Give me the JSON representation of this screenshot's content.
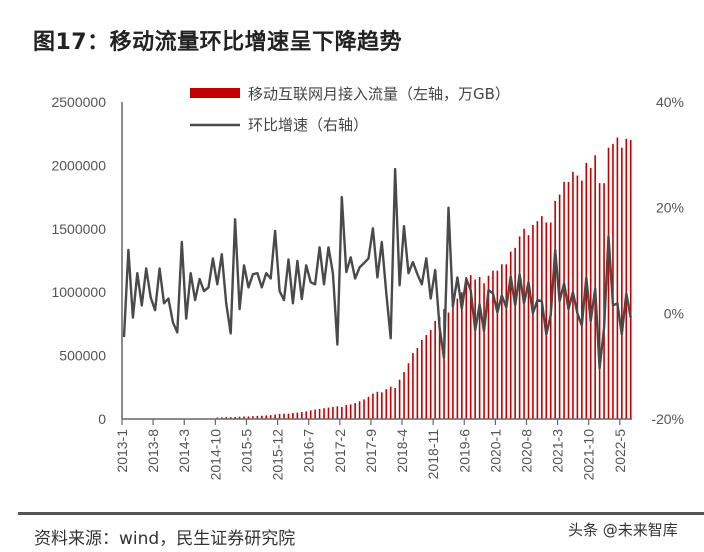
{
  "title": "图17：移动流量环比增速呈下降趋势",
  "source": "资料来源：wind，民生证券研究院",
  "watermark": "头条 @未来智库",
  "chart_data": {
    "type": "bar+line",
    "title": "",
    "legend": {
      "position": "top",
      "items": [
        "移动互联网月接入流量（左轴，万GB）",
        "环比增速（右轴）"
      ]
    },
    "colors": {
      "bars": "#c00000",
      "line": "#4a4a4a"
    },
    "y_left": {
      "range": [
        0,
        2500000
      ],
      "ticks": [
        "0",
        "500000",
        "1000000",
        "1500000",
        "2000000",
        "2500000"
      ]
    },
    "y_right": {
      "range": [
        -20,
        40
      ],
      "unit": "%",
      "ticks": [
        "-20%",
        "0%",
        "20%",
        "40%"
      ]
    },
    "x_tick_labels": [
      "2013-1",
      "2013-8",
      "2014-3",
      "2014-10",
      "2015-5",
      "2015-12",
      "2016-7",
      "2017-2",
      "2017-9",
      "2018-4",
      "2018-11",
      "2019-6",
      "2020-1",
      "2020-8",
      "2021-3",
      "2021-10",
      "2022-5"
    ],
    "categories": [
      "2013-1",
      "2013-2",
      "2013-3",
      "2013-4",
      "2013-5",
      "2013-6",
      "2013-7",
      "2013-8",
      "2013-9",
      "2013-10",
      "2013-11",
      "2013-12",
      "2014-1",
      "2014-2",
      "2014-3",
      "2014-4",
      "2014-5",
      "2014-6",
      "2014-7",
      "2014-8",
      "2014-9",
      "2014-10",
      "2014-11",
      "2014-12",
      "2015-1",
      "2015-2",
      "2015-3",
      "2015-4",
      "2015-5",
      "2015-6",
      "2015-7",
      "2015-8",
      "2015-9",
      "2015-10",
      "2015-11",
      "2015-12",
      "2016-1",
      "2016-2",
      "2016-3",
      "2016-4",
      "2016-5",
      "2016-6",
      "2016-7",
      "2016-8",
      "2016-9",
      "2016-10",
      "2016-11",
      "2016-12",
      "2017-1",
      "2017-2",
      "2017-3",
      "2017-4",
      "2017-5",
      "2017-6",
      "2017-7",
      "2017-8",
      "2017-9",
      "2017-10",
      "2017-11",
      "2017-12",
      "2018-1",
      "2018-2",
      "2018-3",
      "2018-4",
      "2018-5",
      "2018-6",
      "2018-7",
      "2018-8",
      "2018-9",
      "2018-10",
      "2018-11",
      "2018-12",
      "2019-1",
      "2019-2",
      "2019-3",
      "2019-4",
      "2019-5",
      "2019-6",
      "2019-7",
      "2019-8",
      "2019-9",
      "2019-10",
      "2019-11",
      "2019-12",
      "2020-1",
      "2020-2",
      "2020-3",
      "2020-4",
      "2020-5",
      "2020-6",
      "2020-7",
      "2020-8",
      "2020-9",
      "2020-10",
      "2020-11",
      "2020-12",
      "2021-1",
      "2021-2",
      "2021-3",
      "2021-4",
      "2021-5",
      "2021-6",
      "2021-7",
      "2021-8",
      "2021-9",
      "2021-10",
      "2021-11",
      "2021-12",
      "2022-1",
      "2022-2",
      "2022-3",
      "2022-4",
      "2022-5",
      "2022-6",
      "2022-7"
    ],
    "series": [
      {
        "name": "移动互联网月接入流量（左轴，万GB）",
        "type": "bar",
        "axis": "left",
        "values": [
          null,
          null,
          null,
          null,
          null,
          null,
          null,
          null,
          null,
          null,
          null,
          null,
          null,
          null,
          null,
          null,
          null,
          null,
          null,
          null,
          null,
          12000,
          13000,
          15000,
          15000,
          16000,
          18000,
          20000,
          20000,
          22000,
          25000,
          26000,
          28000,
          30000,
          35000,
          40000,
          42000,
          42000,
          48000,
          50000,
          55000,
          60000,
          68000,
          75000,
          80000,
          85000,
          90000,
          95000,
          100000,
          95000,
          110000,
          115000,
          125000,
          140000,
          155000,
          175000,
          200000,
          215000,
          210000,
          235000,
          255000,
          245000,
          310000,
          370000,
          440000,
          520000,
          560000,
          623000,
          662000,
          702000,
          773000,
          804000,
          867000,
          840000,
          922000,
          950000,
          1000000,
          1120000,
          1135000,
          1100000,
          1120000,
          1070000,
          1130000,
          1170000,
          1170000,
          1220000,
          1220000,
          1320000,
          1350000,
          1440000,
          1500000,
          1450000,
          1530000,
          1560000,
          1600000,
          1550000,
          1550000,
          1720000,
          1770000,
          1870000,
          1870000,
          1950000,
          1920000,
          1880000,
          2020000,
          1980000,
          2080000,
          1860000,
          1860000,
          2140000,
          2170000,
          2220000,
          2140000,
          2210000,
          2200000
        ]
      },
      {
        "name": "环比增速（右轴）",
        "type": "line",
        "axis": "right",
        "values": [
          -4.5,
          12,
          -0.8,
          7.6,
          1.5,
          8.5,
          3,
          0.6,
          8.5,
          1.9,
          2.8,
          -1.7,
          -3.6,
          13.5,
          -1,
          7.6,
          2.5,
          6.5,
          4.2,
          4.9,
          10.4,
          5.5,
          11.2,
          1.9,
          -3.8,
          17.8,
          0.8,
          9.1,
          4.9,
          7.4,
          7.6,
          4.9,
          7.6,
          6.6,
          15.6,
          4.2,
          2.5,
          10.2,
          1.9,
          9.9,
          2.7,
          9.1,
          5.9,
          5.5,
          12.5,
          5.5,
          12.5,
          7.6,
          -5.9,
          22,
          7.8,
          10.6,
          6.6,
          8.7,
          9.5,
          10.4,
          16.1,
          6.8,
          13.5,
          3.8,
          -4.7,
          27.3,
          5.3,
          16.5,
          7.6,
          9.7,
          7.4,
          5.5,
          10.4,
          2.8,
          8.2,
          -2.7,
          -8.5,
          20,
          1.3,
          6.8,
          0.9,
          6.5,
          4.4,
          -3.2,
          1.7,
          -3.4,
          4.4,
          3.8,
          0.2,
          3.4,
          1.1,
          7,
          1.5,
          7.4,
          1.9,
          5.9,
          0,
          2.5,
          2.3,
          -4,
          -0.4,
          12,
          2.3,
          5.7,
          0.8,
          4,
          0,
          -2.3,
          6.8,
          -1.5,
          4.7,
          -10.4,
          -2.7,
          14.6,
          1.5,
          1.9,
          -4,
          3.8,
          -0.8
        ]
      }
    ]
  }
}
